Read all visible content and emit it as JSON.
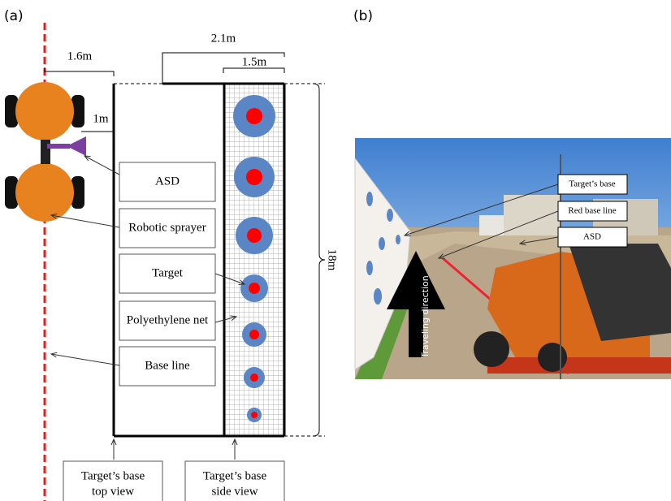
{
  "panel_a": {
    "label": "(a)",
    "dimensions": {
      "robot_offset": "1.6m",
      "base_width": "2.1m",
      "net_width": "1.5m",
      "asd_distance": "1m",
      "length": "18m"
    },
    "labels": [
      "ASD",
      "Robotic sprayer",
      "Target",
      "Polyethylene net",
      "Base line"
    ],
    "bottom_labels": [
      {
        "line1": "Target’s base",
        "line2": "top view"
      },
      {
        "line1": "Target’s base",
        "line2": "side view"
      }
    ]
  },
  "panel_b": {
    "label": "(b)",
    "labels": [
      "Target’s base",
      "Red base line",
      "ASD"
    ],
    "direction": "Traveling direction"
  }
}
